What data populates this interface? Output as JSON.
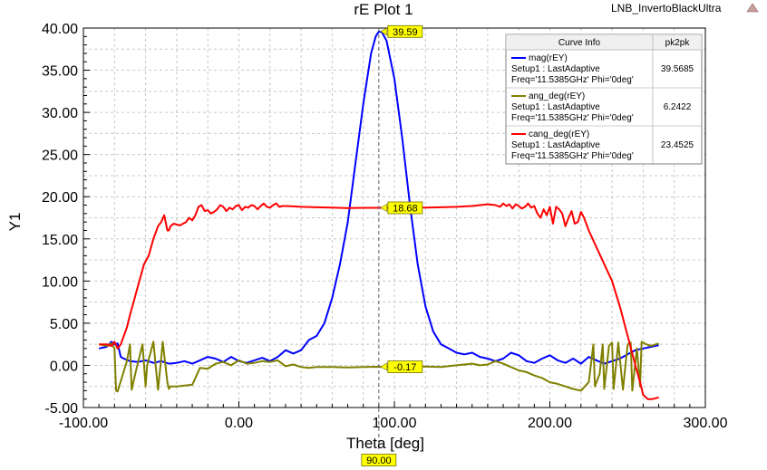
{
  "header": {
    "title": "rE Plot 1",
    "design_name": "LNB_InvertoBlackUltra"
  },
  "legend": {
    "col_info": "Curve Info",
    "col_stat": "pk2pk",
    "rows": [
      {
        "name": "mag(rEY)",
        "line2": "Setup1 : LastAdaptive",
        "line3": "Freq='11.5385GHz' Phi='0deg'",
        "value": "39.5685",
        "color": "#0000ff"
      },
      {
        "name": "ang_deg(rEY)",
        "line2": "Setup1 : LastAdaptive",
        "line3": "Freq='11.5385GHz' Phi='0deg'",
        "value": "6.2422",
        "color": "#808000"
      },
      {
        "name": "cang_deg(rEY)",
        "line2": "Setup1 : LastAdaptive",
        "line3": "Freq='11.5385GHz' Phi='0deg'",
        "value": "23.4525",
        "color": "#ff0000"
      }
    ]
  },
  "markers": {
    "mag": "39.59",
    "cang": "18.68",
    "ang": "-0.17",
    "x": "90.00"
  },
  "chart_data": {
    "type": "line",
    "title": "rE Plot 1",
    "xlabel": "Theta [deg]",
    "ylabel": "Y1",
    "xlim": [
      -100,
      300
    ],
    "ylim": [
      -5,
      40
    ],
    "x_ticks": [
      "-100.00",
      "0.00",
      "100.00",
      "200.00",
      "300.00"
    ],
    "y_ticks": [
      "-5.00",
      "0.00",
      "5.00",
      "10.00",
      "15.00",
      "20.00",
      "25.00",
      "30.00",
      "35.00",
      "40.00"
    ],
    "grid": true,
    "legend_position": "top-right",
    "marker_x": 90,
    "series": [
      {
        "name": "mag(rEY)",
        "color": "#0000ff",
        "x": [
          -90,
          -85,
          -82,
          -80,
          -78,
          -76,
          -74,
          -70,
          -65,
          -60,
          -55,
          -50,
          -45,
          -40,
          -35,
          -30,
          -25,
          -20,
          -15,
          -10,
          -5,
          0,
          5,
          10,
          15,
          20,
          25,
          30,
          35,
          40,
          45,
          50,
          55,
          60,
          65,
          70,
          75,
          80,
          85,
          88,
          90,
          92,
          95,
          100,
          105,
          110,
          115,
          120,
          125,
          130,
          135,
          140,
          145,
          150,
          155,
          160,
          165,
          170,
          175,
          180,
          185,
          190,
          195,
          200,
          205,
          210,
          215,
          220,
          225,
          230,
          235,
          240,
          245,
          250,
          255,
          260,
          265,
          270
        ],
        "y": [
          2.0,
          2.2,
          2.8,
          2.5,
          2.6,
          1.0,
          0.8,
          0.5,
          0.4,
          0.6,
          0.3,
          0.5,
          0.2,
          0.3,
          0.5,
          0.2,
          0.6,
          1.0,
          0.8,
          0.4,
          1.0,
          0.5,
          0.3,
          0.6,
          0.9,
          0.5,
          1.0,
          1.8,
          1.4,
          1.8,
          3.0,
          3.5,
          5.0,
          8.0,
          12.0,
          17.0,
          24.0,
          31.0,
          37.0,
          39.0,
          39.59,
          39.5,
          38.5,
          34.0,
          27.0,
          19.0,
          12.0,
          7.0,
          4.0,
          2.5,
          2.0,
          1.5,
          1.3,
          1.5,
          1.0,
          0.8,
          0.5,
          0.8,
          1.5,
          1.2,
          0.5,
          0.3,
          0.8,
          1.2,
          0.6,
          0.3,
          0.8,
          0.2,
          1.0,
          0.6,
          0.2,
          0.5,
          0.8,
          1.3,
          1.8,
          2.0,
          2.2,
          2.4
        ]
      },
      {
        "name": "ang_deg(rEY)",
        "color": "#808000",
        "x": [
          -90,
          -85,
          -82,
          -80,
          -79,
          -78,
          -72,
          -70,
          -69,
          -66,
          -62,
          -60,
          -59,
          -55,
          -52,
          -50,
          -49,
          -46,
          -45,
          -44,
          -40,
          -35,
          -30,
          -25,
          -20,
          -15,
          -10,
          -5,
          0,
          5,
          10,
          15,
          20,
          25,
          30,
          35,
          40,
          45,
          50,
          60,
          70,
          80,
          90,
          100,
          110,
          120,
          130,
          140,
          150,
          155,
          160,
          165,
          170,
          175,
          180,
          185,
          190,
          195,
          200,
          205,
          210,
          215,
          220,
          225,
          228,
          229,
          232,
          234,
          235,
          238,
          240,
          241,
          244,
          246,
          247,
          250,
          252,
          253,
          256,
          258,
          259,
          262,
          265,
          270
        ],
        "y": [
          2.5,
          2.3,
          2.6,
          2.0,
          -3.0,
          -3.1,
          0.5,
          2.5,
          -2.9,
          -0.5,
          2.5,
          -2.5,
          0.0,
          2.8,
          -2.9,
          0.8,
          2.8,
          -2.0,
          -2.8,
          -2.5,
          -2.5,
          -2.4,
          -2.3,
          -0.3,
          -0.4,
          0.2,
          0.4,
          0.0,
          0.6,
          0.2,
          0.3,
          0.5,
          0.4,
          0.6,
          -0.1,
          0.1,
          -0.2,
          -0.3,
          -0.2,
          -0.2,
          -0.25,
          -0.2,
          -0.17,
          -0.2,
          -0.2,
          -0.15,
          -0.2,
          0.0,
          0.2,
          0.0,
          0.1,
          0.5,
          0.2,
          -0.2,
          -0.6,
          -0.8,
          -1.2,
          -1.5,
          -2.0,
          -2.2,
          -2.5,
          -2.8,
          -3.0,
          -2.0,
          2.5,
          -2.5,
          -1.0,
          2.5,
          -2.8,
          2.3,
          2.7,
          -2.8,
          2.7,
          -1.0,
          -2.9,
          2.5,
          2.7,
          -3.0,
          2.0,
          -2.5,
          2.8,
          2.5,
          2.3,
          2.6
        ]
      },
      {
        "name": "cang_deg(rEY)",
        "color": "#ff0000",
        "x": [
          -90,
          -85,
          -82,
          -80,
          -78,
          -76,
          -74,
          -72,
          -70,
          -67,
          -64,
          -61,
          -58,
          -55,
          -52,
          -50,
          -48,
          -46,
          -45,
          -44,
          -42,
          -40,
          -38,
          -36,
          -34,
          -32,
          -30,
          -28,
          -26,
          -24,
          -22,
          -20,
          -18,
          -16,
          -14,
          -12,
          -10,
          -8,
          -6,
          -4,
          -2,
          0,
          2,
          4,
          6,
          8,
          10,
          12,
          14,
          16,
          18,
          20,
          22,
          24,
          26,
          28,
          30,
          35,
          40,
          50,
          60,
          70,
          80,
          90,
          100,
          110,
          120,
          130,
          140,
          150,
          155,
          160,
          165,
          168,
          170,
          172,
          174,
          176,
          178,
          180,
          182,
          184,
          186,
          188,
          190,
          192,
          194,
          196,
          198,
          200,
          202,
          204,
          206,
          208,
          210,
          212,
          214,
          216,
          218,
          220,
          222,
          225,
          230,
          235,
          240,
          245,
          250,
          255,
          258,
          260,
          263,
          266,
          270
        ],
        "y": [
          2.5,
          2.5,
          2.3,
          2.8,
          2.0,
          2.5,
          3.5,
          4.5,
          6.0,
          8.0,
          10.0,
          12.0,
          13.0,
          15.0,
          16.5,
          17.0,
          17.8,
          16.0,
          16.0,
          16.5,
          16.8,
          16.7,
          16.6,
          16.8,
          17.0,
          17.5,
          17.2,
          17.8,
          18.8,
          19.0,
          18.3,
          18.4,
          18.0,
          18.2,
          18.5,
          19.0,
          18.8,
          18.3,
          18.7,
          18.5,
          18.9,
          19.0,
          18.4,
          18.8,
          18.7,
          19.0,
          18.9,
          18.5,
          18.9,
          19.2,
          18.8,
          18.7,
          19.0,
          19.2,
          18.8,
          18.9,
          18.9,
          18.85,
          18.8,
          18.75,
          18.7,
          18.65,
          18.68,
          18.68,
          18.7,
          18.7,
          18.7,
          18.75,
          18.8,
          18.9,
          19.0,
          19.1,
          19.0,
          18.8,
          19.2,
          18.9,
          19.1,
          18.6,
          19.1,
          18.9,
          18.6,
          18.8,
          19.2,
          18.7,
          18.9,
          18.0,
          17.5,
          18.5,
          17.8,
          18.8,
          16.8,
          18.8,
          18.5,
          18.0,
          16.5,
          17.5,
          18.3,
          16.8,
          17.0,
          18.2,
          17.5,
          16.0,
          14.0,
          12.0,
          10.0,
          7.0,
          3.5,
          0.0,
          -2.0,
          -3.5,
          -4.0,
          -4.0,
          -3.8
        ]
      }
    ]
  }
}
